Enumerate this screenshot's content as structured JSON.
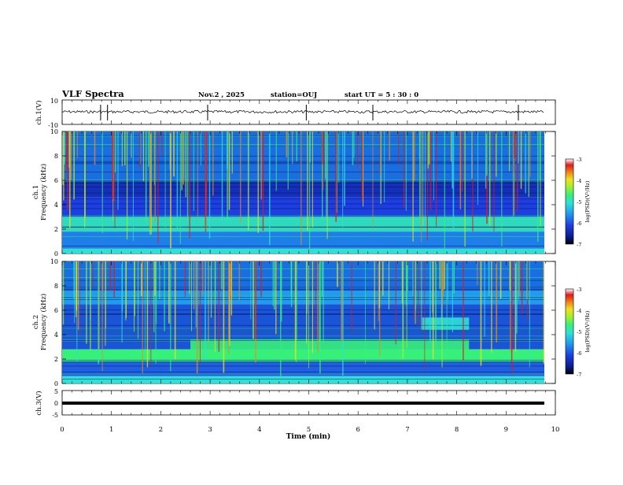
{
  "header": {
    "title": "VLF Spectra",
    "date": "Nov.2 , 2025",
    "station": "station=OUJ",
    "start": "start UT = 5 : 30 : 0"
  },
  "colors": {
    "colormap": [
      "#000000",
      "#0a1a8c",
      "#1d3fe0",
      "#1f9cf0",
      "#2de0d8",
      "#36f07a",
      "#a8f028",
      "#f0e020",
      "#f08a18",
      "#e01a1a",
      "#ffffff"
    ],
    "trace": "#000000"
  },
  "chart_data": [
    {
      "id": "ch0",
      "type": "line",
      "ylabel": "ch.1(V)",
      "ylim": [
        -10,
        10
      ],
      "yticks": [
        "10",
        "-10"
      ],
      "baseline": 0,
      "spikes_min": [
        0.78,
        0.92,
        2.95,
        4.95,
        6.3,
        9.25
      ],
      "xlim": [
        0,
        10
      ]
    },
    {
      "id": "ch1",
      "type": "heatmap",
      "ylabel": "ch.1",
      "ylabel2": "Frequency (kHz)",
      "ylim": [
        0,
        10
      ],
      "yticks": [
        "0",
        "2",
        "4",
        "6",
        "8",
        "10"
      ],
      "xlim": [
        0,
        9.85
      ],
      "bands": [
        {
          "fmin": 0,
          "fmax": 0.4,
          "color": "#2de0d8"
        },
        {
          "fmin": 0.4,
          "fmax": 1.8,
          "color": "#1f7fe8"
        },
        {
          "fmin": 1.8,
          "fmax": 3.0,
          "color": "#2fd8c0"
        },
        {
          "fmin": 3.0,
          "fmax": 4.6,
          "color": "#1d3fe0"
        },
        {
          "fmin": 4.6,
          "fmax": 6.0,
          "color": "#1430b8"
        },
        {
          "fmin": 6.0,
          "fmax": 10,
          "color": "#1a6fe0"
        }
      ],
      "colorbar": {
        "ticks": [
          "-3",
          "-4",
          "-5",
          "-6",
          "-7"
        ],
        "label": "log(PSD)(V²/Hz)",
        "range": [
          -7,
          -3
        ]
      }
    },
    {
      "id": "ch2",
      "type": "heatmap",
      "ylabel": "ch.2",
      "ylabel2": "Frequency (kHz)",
      "ylim": [
        0,
        10
      ],
      "yticks": [
        "0",
        "2",
        "4",
        "6",
        "8",
        "10"
      ],
      "xlim": [
        0,
        9.85
      ],
      "bands": [
        {
          "fmin": 0,
          "fmax": 0.6,
          "color": "#2de0d8"
        },
        {
          "fmin": 0.6,
          "fmax": 1.8,
          "color": "#1f5fe0"
        },
        {
          "fmin": 1.8,
          "fmax": 2.8,
          "color": "#36f07a"
        },
        {
          "fmin": 2.8,
          "fmax": 6.5,
          "color": "#1a55d8"
        },
        {
          "fmin": 6.5,
          "fmax": 7.6,
          "color": "#1f9cf0"
        },
        {
          "fmin": 7.6,
          "fmax": 10,
          "color": "#1a6fe0"
        }
      ],
      "patches": [
        {
          "tmin": 2.6,
          "tmax": 8.25,
          "fmin": 2.2,
          "fmax": 3.6,
          "color": "#36f07a"
        },
        {
          "tmin": 7.3,
          "tmax": 8.25,
          "fmin": 4.4,
          "fmax": 5.4,
          "color": "#2de0d8"
        }
      ],
      "colorbar": {
        "ticks": [
          "-3",
          "-4",
          "-5",
          "-6",
          "-7"
        ],
        "label": "log(PSD)(V²/Hz)",
        "range": [
          -7,
          -3
        ]
      }
    },
    {
      "id": "ch3",
      "type": "line",
      "ylabel": "ch.3(V)",
      "ylim": [
        -5,
        5
      ],
      "yticks": [
        "5",
        "0",
        "-5"
      ],
      "baseline": 0,
      "xlim": [
        0,
        10
      ],
      "xlabel": "Time (min)",
      "xticks": [
        "0",
        "1",
        "2",
        "3",
        "4",
        "5",
        "6",
        "7",
        "8",
        "9",
        "10"
      ]
    }
  ]
}
